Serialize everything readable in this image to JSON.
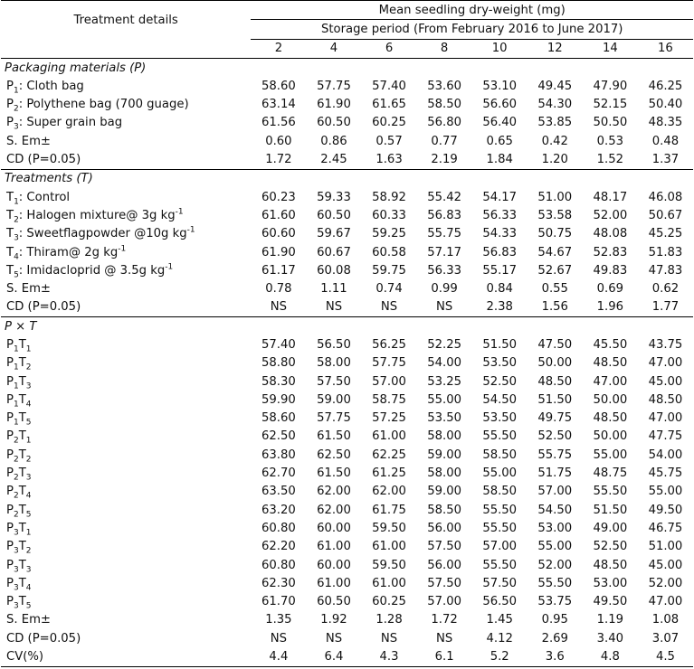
{
  "header": {
    "treatment_label": "Treatment details",
    "group_title": "Mean seedling dry-weight (mg)",
    "subtitle": "Storage period (From February 2016 to June 2017)",
    "periods": [
      "2",
      "4",
      "6",
      "8",
      "10",
      "12",
      "14",
      "16"
    ]
  },
  "sections": [
    {
      "title": "Packaging materials (P)",
      "rows": [
        {
          "pre": "P",
          "sub": "1",
          "text": ": Cloth bag",
          "sup": "",
          "values": [
            "58.60",
            "57.75",
            "57.40",
            "53.60",
            "53.10",
            "49.45",
            "47.90",
            "46.25"
          ]
        },
        {
          "pre": "P",
          "sub": "2",
          "text": ": Polythene bag (700 guage)",
          "sup": "",
          "values": [
            "63.14",
            "61.90",
            "61.65",
            "58.50",
            "56.60",
            "54.30",
            "52.15",
            "50.40"
          ]
        },
        {
          "pre": "P",
          "sub": "3",
          "text": ": Super grain bag",
          "sup": "",
          "values": [
            "61.56",
            "60.50",
            "60.25",
            "56.80",
            "56.40",
            "53.85",
            "50.50",
            "48.35"
          ]
        },
        {
          "pre": "S. Em±",
          "sub": "",
          "text": "",
          "sup": "",
          "values": [
            "0.60",
            "0.86",
            "0.57",
            "0.77",
            "0.65",
            "0.42",
            "0.53",
            "0.48"
          ]
        },
        {
          "pre": "CD (P=0.05)",
          "sub": "",
          "text": "",
          "sup": "",
          "values": [
            "1.72",
            "2.45",
            "1.63",
            "2.19",
            "1.84",
            "1.20",
            "1.52",
            "1.37"
          ],
          "rule": true
        }
      ]
    },
    {
      "title": "Treatments (T)",
      "rows": [
        {
          "pre": "T",
          "sub": "1",
          "text": ": Control",
          "sup": "",
          "values": [
            "60.23",
            "59.33",
            "58.92",
            "55.42",
            "54.17",
            "51.00",
            "48.17",
            "46.08"
          ]
        },
        {
          "pre": "T",
          "sub": "2",
          "text": ": Halogen mixture@ 3g kg",
          "sup": "-1",
          "values": [
            "61.60",
            "60.50",
            "60.33",
            "56.83",
            "56.33",
            "53.58",
            "52.00",
            "50.67"
          ]
        },
        {
          "pre": "T",
          "sub": "3",
          "text": ": Sweetflagpowder @10g kg",
          "sup": "-1",
          "values": [
            "60.60",
            "59.67",
            "59.25",
            "55.75",
            "54.33",
            "50.75",
            "48.08",
            "45.25"
          ]
        },
        {
          "pre": "T",
          "sub": "4",
          "text": ": Thiram@ 2g kg",
          "sup": "-1",
          "values": [
            "61.90",
            "60.67",
            "60.58",
            "57.17",
            "56.83",
            "54.67",
            "52.83",
            "51.83"
          ]
        },
        {
          "pre": "T",
          "sub": "5",
          "text": ": Imidacloprid @ 3.5g kg",
          "sup": "-1",
          "values": [
            "61.17",
            "60.08",
            "59.75",
            "56.33",
            "55.17",
            "52.67",
            "49.83",
            "47.83"
          ]
        },
        {
          "pre": "S. Em±",
          "sub": "",
          "text": "",
          "sup": "",
          "values": [
            "0.78",
            "1.11",
            "0.74",
            "0.99",
            "0.84",
            "0.55",
            "0.69",
            "0.62"
          ]
        },
        {
          "pre": "CD (P=0.05)",
          "sub": "",
          "text": "",
          "sup": "",
          "values": [
            "NS",
            "NS",
            "NS",
            "NS",
            "2.38",
            "1.56",
            "1.96",
            "1.77"
          ],
          "rule": true
        }
      ]
    },
    {
      "title": "P × T",
      "rows": [
        {
          "p": "1",
          "t": "1",
          "values": [
            "57.40",
            "56.50",
            "56.25",
            "52.25",
            "51.50",
            "47.50",
            "45.50",
            "43.75"
          ]
        },
        {
          "p": "1",
          "t": "2",
          "values": [
            "58.80",
            "58.00",
            "57.75",
            "54.00",
            "53.50",
            "50.00",
            "48.50",
            "47.00"
          ]
        },
        {
          "p": "1",
          "t": "3",
          "values": [
            "58.30",
            "57.50",
            "57.00",
            "53.25",
            "52.50",
            "48.50",
            "47.00",
            "45.00"
          ]
        },
        {
          "p": "1",
          "t": "4",
          "values": [
            "59.90",
            "59.00",
            "58.75",
            "55.00",
            "54.50",
            "51.50",
            "50.00",
            "48.50"
          ]
        },
        {
          "p": "1",
          "t": "5",
          "values": [
            "58.60",
            "57.75",
            "57.25",
            "53.50",
            "53.50",
            "49.75",
            "48.50",
            "47.00"
          ]
        },
        {
          "p": "2",
          "t": "1",
          "values": [
            "62.50",
            "61.50",
            "61.00",
            "58.00",
            "55.50",
            "52.50",
            "50.00",
            "47.75"
          ]
        },
        {
          "p": "2",
          "t": "2",
          "values": [
            "63.80",
            "62.50",
            "62.25",
            "59.00",
            "58.50",
            "55.75",
            "55.00",
            "54.00"
          ]
        },
        {
          "p": "2",
          "t": "3",
          "values": [
            "62.70",
            "61.50",
            "61.25",
            "58.00",
            "55.00",
            "51.75",
            "48.75",
            "45.75"
          ]
        },
        {
          "p": "2",
          "t": "4",
          "values": [
            "63.50",
            "62.00",
            "62.00",
            "59.00",
            "58.50",
            "57.00",
            "55.50",
            "55.00"
          ]
        },
        {
          "p": "2",
          "t": "5",
          "values": [
            "63.20",
            "62.00",
            "61.75",
            "58.50",
            "55.50",
            "54.50",
            "51.50",
            "49.50"
          ]
        },
        {
          "p": "3",
          "t": "1",
          "values": [
            "60.80",
            "60.00",
            "59.50",
            "56.00",
            "55.50",
            "53.00",
            "49.00",
            "46.75"
          ]
        },
        {
          "p": "3",
          "t": "2",
          "values": [
            "62.20",
            "61.00",
            "61.00",
            "57.50",
            "57.00",
            "55.00",
            "52.50",
            "51.00"
          ]
        },
        {
          "p": "3",
          "t": "3",
          "values": [
            "60.80",
            "60.00",
            "59.50",
            "56.00",
            "55.50",
            "52.00",
            "48.50",
            "45.00"
          ]
        },
        {
          "p": "3",
          "t": "4",
          "values": [
            "62.30",
            "61.00",
            "61.00",
            "57.50",
            "57.50",
            "55.50",
            "53.00",
            "52.00"
          ]
        },
        {
          "p": "3",
          "t": "5",
          "values": [
            "61.70",
            "60.50",
            "60.25",
            "57.00",
            "56.50",
            "53.75",
            "49.50",
            "47.00"
          ]
        }
      ],
      "stats": [
        {
          "label": "S. Em±",
          "values": [
            "1.35",
            "1.92",
            "1.28",
            "1.72",
            "1.45",
            "0.95",
            "1.19",
            "1.08"
          ]
        },
        {
          "label": "CD (P=0.05)",
          "values": [
            "NS",
            "NS",
            "NS",
            "NS",
            "4.12",
            "2.69",
            "3.40",
            "3.07"
          ]
        },
        {
          "label": "CV(%)",
          "values": [
            "4.4",
            "6.4",
            "4.3",
            "6.1",
            "5.2",
            "3.6",
            "4.8",
            "4.5"
          ]
        }
      ]
    }
  ]
}
